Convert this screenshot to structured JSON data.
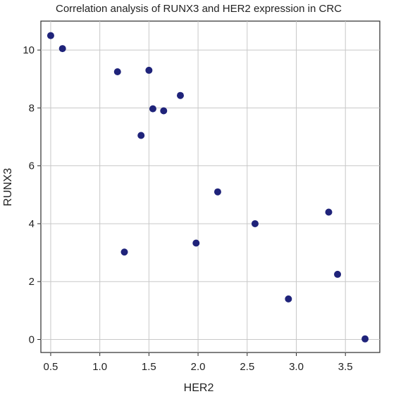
{
  "chart_data": {
    "type": "scatter",
    "title": "Correlation analysis of RUNX3 and HER2 expression in CRC",
    "xlabel": "HER2",
    "ylabel": "RUNX3",
    "xlim": [
      0.4,
      3.85
    ],
    "ylim": [
      -0.45,
      11.0
    ],
    "xticks": [
      "0.5",
      "1.0",
      "1.5",
      "2.0",
      "2.5",
      "3.0",
      "3.5"
    ],
    "yticks": [
      "0",
      "2",
      "4",
      "6",
      "8",
      "10"
    ],
    "grid": true,
    "points": [
      {
        "x": 0.5,
        "y": 10.5
      },
      {
        "x": 0.62,
        "y": 10.05
      },
      {
        "x": 1.18,
        "y": 9.25
      },
      {
        "x": 1.5,
        "y": 9.3
      },
      {
        "x": 1.82,
        "y": 8.43
      },
      {
        "x": 1.54,
        "y": 7.97
      },
      {
        "x": 1.65,
        "y": 7.9
      },
      {
        "x": 1.42,
        "y": 7.05
      },
      {
        "x": 2.2,
        "y": 5.1
      },
      {
        "x": 3.33,
        "y": 4.4
      },
      {
        "x": 2.58,
        "y": 4.0
      },
      {
        "x": 1.98,
        "y": 3.33
      },
      {
        "x": 1.25,
        "y": 3.02
      },
      {
        "x": 3.42,
        "y": 2.25
      },
      {
        "x": 2.92,
        "y": 1.4
      },
      {
        "x": 3.7,
        "y": 0.02
      }
    ],
    "marker_color": "#1f237a"
  }
}
